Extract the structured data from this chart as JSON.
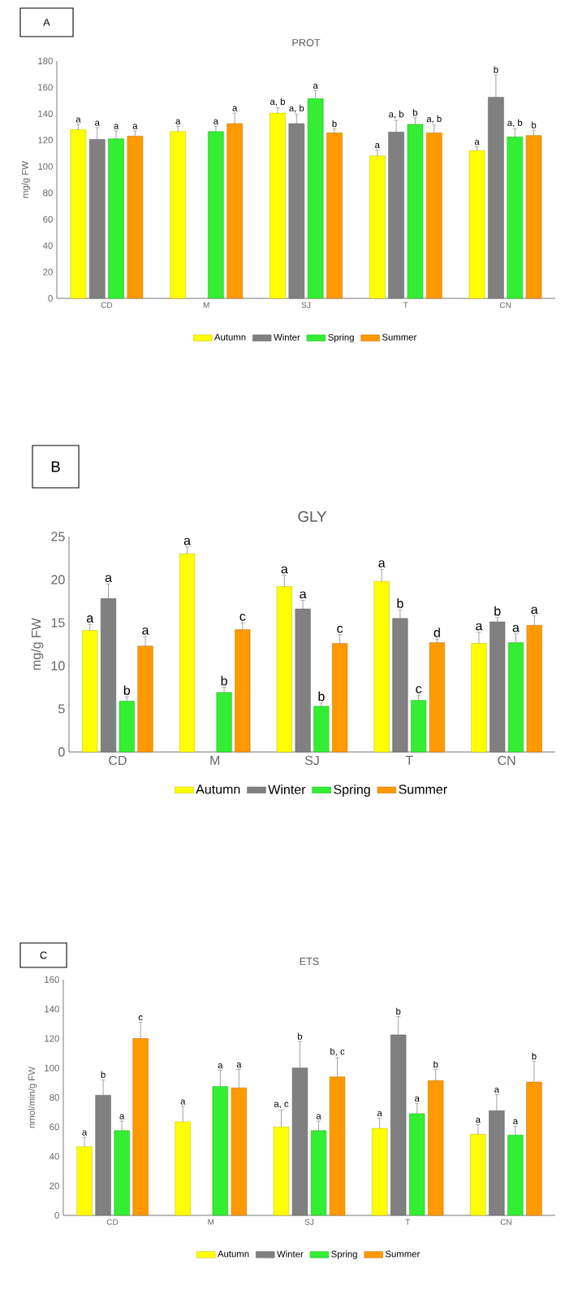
{
  "chart_data": [
    {
      "type": "bar",
      "title": "PROT",
      "ylabel": "mg/g FW",
      "annotations": [
        "A"
      ],
      "categories": [
        "CD",
        "M",
        "SJ",
        "T",
        "CN"
      ],
      "ylim": [
        0,
        180
      ],
      "yticks": [
        0,
        20,
        40,
        60,
        80,
        100,
        120,
        140,
        160,
        180
      ],
      "legend": "bottom",
      "series": [
        {
          "name": "Autumn",
          "color": "#ffff00",
          "values": [
            128,
            126.5,
            140.5,
            108,
            112
          ],
          "errors": [
            4,
            4,
            4,
            4.5,
            3
          ],
          "value_labels": [
            "a",
            "a",
            "a, b",
            "a",
            "a"
          ]
        },
        {
          "name": "Winter",
          "color": "#808080",
          "values": [
            120.5,
            null,
            132.5,
            126,
            152.5
          ],
          "errors": [
            9,
            null,
            7,
            9,
            17
          ],
          "value_labels": [
            "a",
            null,
            "a, b",
            "a, b",
            "b"
          ]
        },
        {
          "name": "Spring",
          "color": "#33ee33",
          "values": [
            121,
            126.5,
            151.5,
            132,
            122.5
          ],
          "errors": [
            6,
            4,
            6,
            5,
            6
          ],
          "value_labels": [
            "a",
            "a",
            "a",
            "b",
            "a, b"
          ]
        },
        {
          "name": "Summer",
          "color": "#ff9900",
          "values": [
            123,
            132.5,
            125.5,
            125.5,
            123.5
          ],
          "errors": [
            4,
            8,
            3,
            6,
            4
          ],
          "value_labels": [
            "a",
            "a",
            "b",
            "a, b",
            "b"
          ]
        }
      ]
    },
    {
      "type": "bar",
      "title": "GLY",
      "ylabel": "mg/g FW",
      "annotations": [
        "B"
      ],
      "categories": [
        "CD",
        "M",
        "SJ",
        "T",
        "CN"
      ],
      "ylim": [
        0,
        25
      ],
      "yticks": [
        0,
        5,
        10,
        15,
        20,
        25
      ],
      "legend": "bottom",
      "series": [
        {
          "name": "Autumn",
          "color": "#ffff00",
          "values": [
            14.1,
            23.0,
            19.2,
            19.8,
            12.6
          ],
          "errors": [
            0.7,
            0.8,
            1.3,
            1.4,
            1.3
          ],
          "value_labels": [
            "a",
            "a",
            "a",
            "a",
            "a"
          ]
        },
        {
          "name": "Winter",
          "color": "#808080",
          "values": [
            17.8,
            null,
            16.6,
            15.5,
            15.1
          ],
          "errors": [
            1.7,
            null,
            1.0,
            1.0,
            0.5
          ],
          "value_labels": [
            "a",
            null,
            "a",
            "b",
            "b"
          ]
        },
        {
          "name": "Spring",
          "color": "#33ee33",
          "values": [
            5.9,
            6.9,
            5.3,
            6.0,
            12.7
          ],
          "errors": [
            0.5,
            0.6,
            0.4,
            0.6,
            1.0
          ],
          "value_labels": [
            "b",
            "b",
            "b",
            "c",
            "a"
          ]
        },
        {
          "name": "Summer",
          "color": "#ff9900",
          "values": [
            12.3,
            14.2,
            12.6,
            12.7,
            14.7
          ],
          "errors": [
            1.1,
            0.8,
            1.0,
            0.4,
            1.1
          ],
          "value_labels": [
            "a",
            "c",
            "c",
            "d",
            "a"
          ]
        }
      ]
    },
    {
      "type": "bar",
      "title": "ETS",
      "ylabel": "nmol/min/g FW",
      "annotations": [
        "C"
      ],
      "categories": [
        "CD",
        "M",
        "SJ",
        "T",
        "CN"
      ],
      "ylim": [
        0,
        160
      ],
      "yticks": [
        0,
        20,
        40,
        60,
        80,
        100,
        120,
        140,
        160
      ],
      "legend": "bottom",
      "series": [
        {
          "name": "Autumn",
          "color": "#ffff00",
          "values": [
            46.5,
            63.5,
            60,
            59,
            55
          ],
          "errors": [
            6.5,
            10.5,
            11.5,
            7,
            6.5
          ],
          "value_labels": [
            "a",
            "a",
            "a, c",
            "a",
            "a"
          ]
        },
        {
          "name": "Winter",
          "color": "#808080",
          "values": [
            81.5,
            null,
            100,
            122.5,
            71
          ],
          "errors": [
            10.5,
            null,
            18,
            12.5,
            11
          ],
          "value_labels": [
            "b",
            null,
            "b",
            "b",
            "a"
          ]
        },
        {
          "name": "Spring",
          "color": "#33ee33",
          "values": [
            57.5,
            87.5,
            57.5,
            69,
            54.5
          ],
          "errors": [
            6.5,
            11,
            6.5,
            7,
            6
          ],
          "value_labels": [
            "a",
            "a",
            "a",
            "a",
            "a"
          ]
        },
        {
          "name": "Summer",
          "color": "#ff9900",
          "values": [
            120,
            86.5,
            94,
            91.5,
            90.5
          ],
          "errors": [
            11,
            12.5,
            13,
            7.5,
            14
          ],
          "value_labels": [
            "c",
            "a",
            "b, c",
            "b",
            "b"
          ]
        }
      ]
    }
  ]
}
